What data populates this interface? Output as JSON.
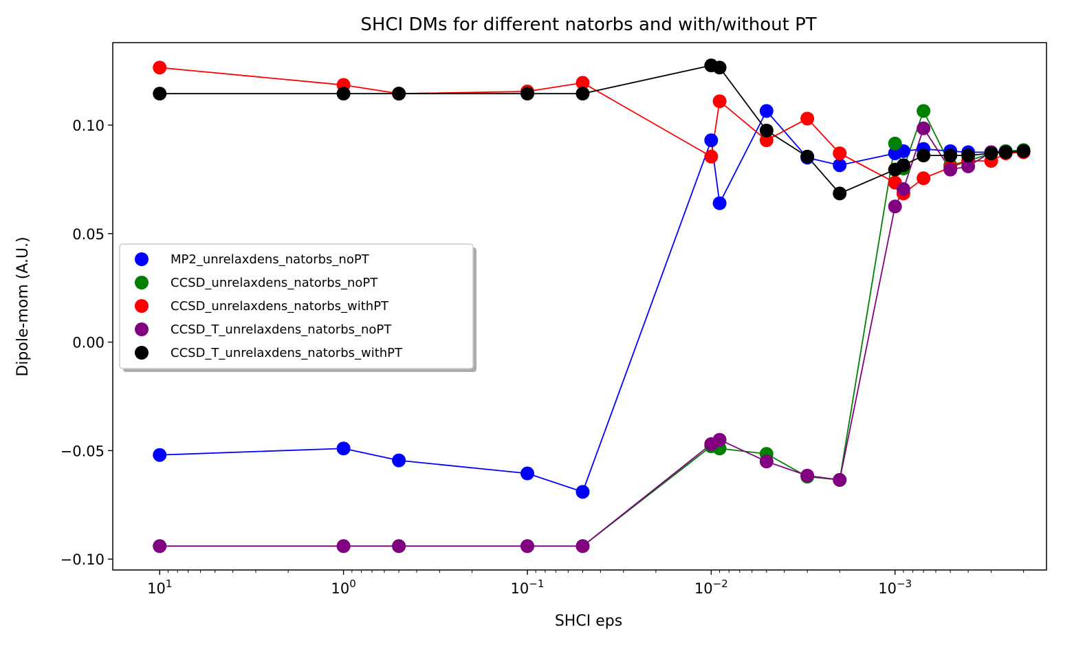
{
  "chart_data": {
    "type": "scatter",
    "title": "SHCI DMs for different natorbs and with/without PT",
    "xlabel": "SHCI eps",
    "ylabel": "Dipole-mom (A.U.)",
    "x_scale": "log",
    "x_inverted": true,
    "xlim": [
      18,
      0.00015
    ],
    "ylim": [
      -0.105,
      0.138
    ],
    "x_ticks": [
      {
        "value": 10,
        "label": "10",
        "exp": "1"
      },
      {
        "value": 1,
        "label": "10",
        "exp": "0"
      },
      {
        "value": 0.1,
        "label": "10",
        "exp": "−1"
      },
      {
        "value": 0.01,
        "label": "10",
        "exp": "−2"
      },
      {
        "value": 0.001,
        "label": "10",
        "exp": "−3"
      }
    ],
    "y_ticks": [
      {
        "value": 0.1,
        "label": "0.10"
      },
      {
        "value": 0.05,
        "label": "0.05"
      },
      {
        "value": 0.0,
        "label": "0.00"
      },
      {
        "value": -0.05,
        "label": "−0.05"
      },
      {
        "value": -0.1,
        "label": "−0.10"
      }
    ],
    "grid": false,
    "legend_position": "center-left",
    "series": [
      {
        "name": "MP2_unrelaxdens_natorbs_noPT",
        "color": "#0000ff",
        "x": [
          10,
          1,
          0.5,
          0.1,
          0.05,
          0.01,
          0.009,
          0.005,
          0.003,
          0.002,
          0.001,
          0.0009,
          0.0007,
          0.0005,
          0.0004,
          0.0003,
          0.00025,
          0.0002
        ],
        "y": [
          -0.052,
          -0.049,
          -0.0545,
          -0.0605,
          -0.069,
          0.093,
          0.064,
          0.1065,
          0.085,
          0.0815,
          0.087,
          0.088,
          0.089,
          0.088,
          0.0875,
          0.0875,
          0.088,
          0.088
        ]
      },
      {
        "name": "CCSD_unrelaxdens_natorbs_noPT",
        "color": "#008000",
        "x": [
          10,
          1,
          0.5,
          0.1,
          0.05,
          0.01,
          0.009,
          0.005,
          0.003,
          0.002,
          0.001,
          0.0009,
          0.0007,
          0.0005,
          0.0004,
          0.0003,
          0.00025,
          0.0002
        ],
        "y": [
          -0.094,
          -0.094,
          -0.094,
          -0.094,
          -0.094,
          -0.048,
          -0.049,
          -0.0515,
          -0.062,
          -0.0635,
          0.0915,
          0.08,
          0.1065,
          0.0815,
          0.0835,
          0.087,
          0.088,
          0.0885
        ]
      },
      {
        "name": "CCSD_unrelaxdens_natorbs_withPT",
        "color": "#ff0000",
        "x": [
          10,
          1,
          0.5,
          0.1,
          0.05,
          0.01,
          0.009,
          0.005,
          0.003,
          0.002,
          0.001,
          0.0009,
          0.0007,
          0.0005,
          0.0004,
          0.0003,
          0.00025,
          0.0002
        ],
        "y": [
          0.1265,
          0.1185,
          0.1145,
          0.1155,
          0.1195,
          0.0855,
          0.111,
          0.093,
          0.103,
          0.087,
          0.0735,
          0.0685,
          0.0755,
          0.0805,
          0.0835,
          0.0835,
          0.087,
          0.0875
        ]
      },
      {
        "name": "CCSD_T_unrelaxdens_natorbs_noPT",
        "color": "#800080",
        "x": [
          10,
          1,
          0.5,
          0.1,
          0.05,
          0.01,
          0.009,
          0.005,
          0.003,
          0.002,
          0.001,
          0.0009,
          0.0007,
          0.0005,
          0.0004,
          0.0003,
          0.00025,
          0.0002
        ],
        "y": [
          -0.094,
          -0.094,
          -0.094,
          -0.094,
          -0.094,
          -0.047,
          -0.045,
          -0.055,
          -0.0615,
          -0.0635,
          0.0625,
          0.0705,
          0.0985,
          0.0795,
          0.081,
          0.0875,
          0.0875,
          0.088
        ]
      },
      {
        "name": "CCSD_T_unrelaxdens_natorbs_withPT",
        "color": "#000000",
        "x": [
          10,
          1,
          0.5,
          0.1,
          0.05,
          0.01,
          0.009,
          0.005,
          0.003,
          0.002,
          0.001,
          0.0009,
          0.0007,
          0.0005,
          0.0004,
          0.0003,
          0.00025,
          0.0002
        ],
        "y": [
          0.1145,
          0.1145,
          0.1145,
          0.1145,
          0.1145,
          0.1275,
          0.1265,
          0.0975,
          0.0855,
          0.0685,
          0.0795,
          0.0815,
          0.086,
          0.086,
          0.086,
          0.087,
          0.0875,
          0.088
        ]
      }
    ]
  }
}
